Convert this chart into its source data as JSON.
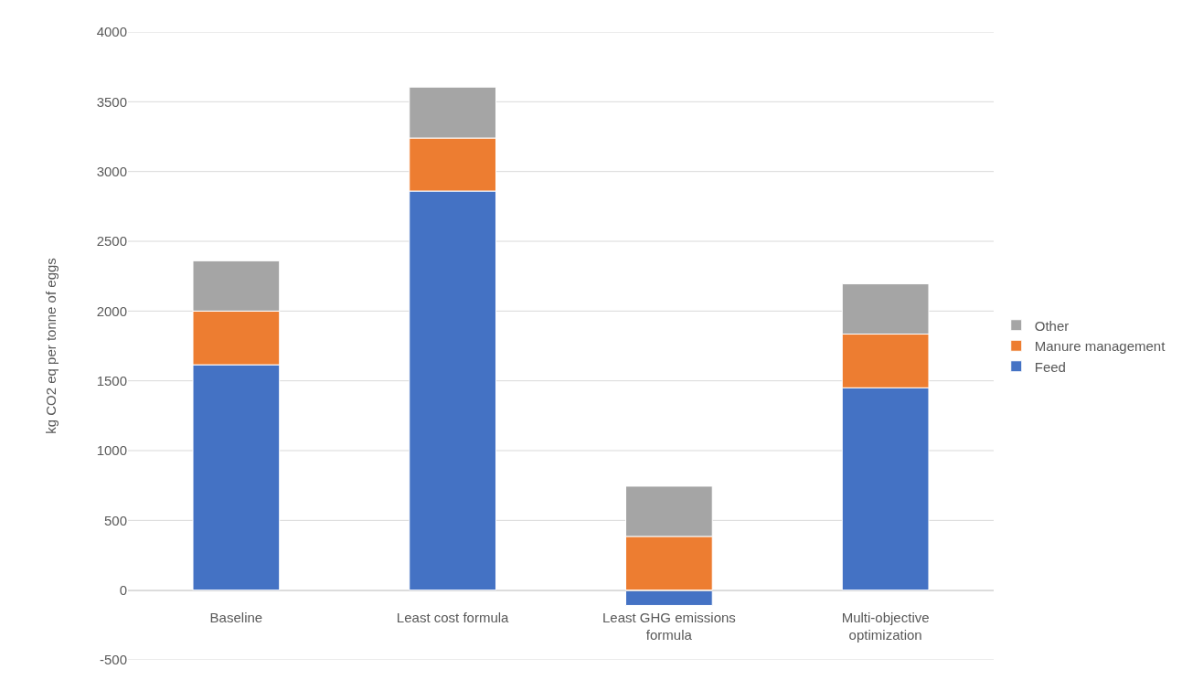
{
  "chart_data": {
    "type": "bar",
    "stacked": true,
    "ylabel": "kg CO2 eq per tonne of eggs",
    "categories": [
      "Baseline",
      "Least cost formula",
      "Least GHG emissions formula",
      "Multi-objective optimization"
    ],
    "series": [
      {
        "name": "Feed",
        "color": "#4472c4",
        "values": [
          1615,
          2860,
          -110,
          1450
        ]
      },
      {
        "name": "Manure management",
        "color": "#ed7d31",
        "values": [
          385,
          380,
          385,
          385
        ]
      },
      {
        "name": "Other",
        "color": "#a5a5a5",
        "values": [
          360,
          365,
          360,
          360
        ]
      }
    ],
    "ylim": [
      -500,
      4000
    ],
    "yticks": [
      -500,
      0,
      500,
      1000,
      1500,
      2000,
      2500,
      3000,
      3500,
      4000
    ],
    "grid": "y",
    "legend": "right"
  }
}
